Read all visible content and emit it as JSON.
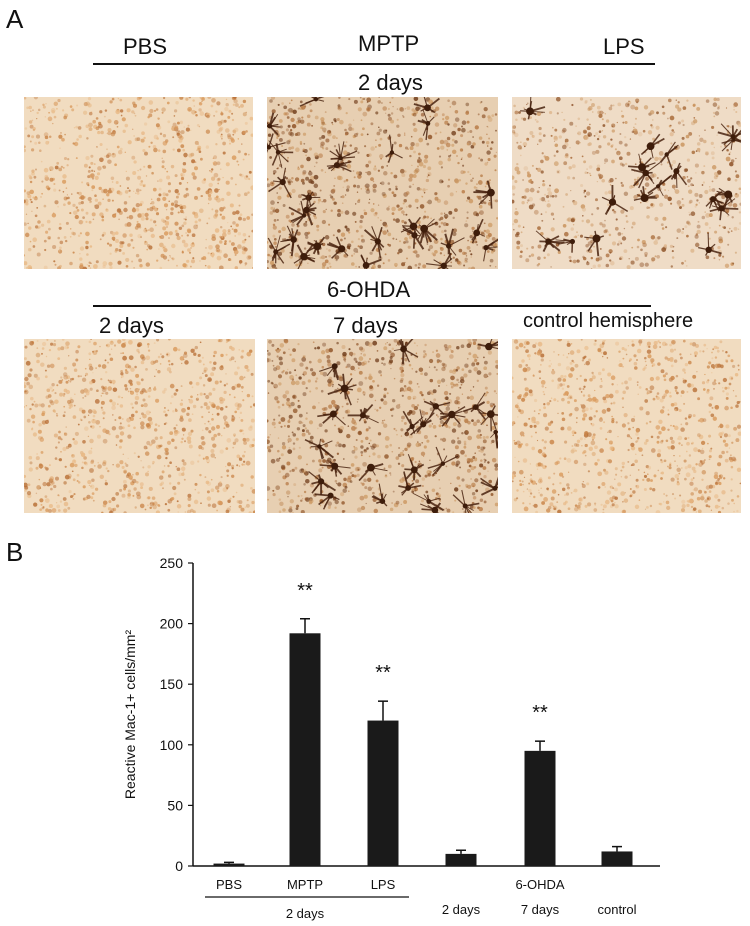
{
  "panel_a": {
    "letter": "A",
    "row1": {
      "headers": [
        "PBS",
        "MPTP",
        "LPS"
      ],
      "time": "2 days",
      "images": [
        {
          "name": "pbs-2days",
          "stain": "light",
          "cells": 0
        },
        {
          "name": "mptp-2days",
          "stain": "dark",
          "cells": 28
        },
        {
          "name": "lps-2days",
          "stain": "medium",
          "cells": 18
        }
      ]
    },
    "row2": {
      "group": "6-OHDA",
      "headers": [
        "2 days",
        "7 days",
        "control hemisphere"
      ],
      "images": [
        {
          "name": "ohda-2days",
          "stain": "light",
          "cells": 0
        },
        {
          "name": "ohda-7days",
          "stain": "dark",
          "cells": 26
        },
        {
          "name": "ohda-control",
          "stain": "light",
          "cells": 0
        }
      ]
    }
  },
  "panel_b": {
    "letter": "B",
    "significance_marker": "**"
  },
  "chart_data": {
    "type": "bar",
    "ylabel": "Reactive Mac-1+ cells/mm²",
    "ylim": [
      0,
      250
    ],
    "yticks": [
      0,
      50,
      100,
      150,
      200,
      250
    ],
    "categories": [
      "PBS",
      "MPTP",
      "LPS",
      "2 days",
      "7 days",
      "control"
    ],
    "values": [
      2,
      192,
      120,
      10,
      95,
      12
    ],
    "errors": [
      1,
      12,
      16,
      3,
      8,
      4
    ],
    "significant": [
      false,
      true,
      true,
      false,
      true,
      false
    ],
    "group_labels": [
      {
        "label": "2 days",
        "categories": [
          "PBS",
          "MPTP",
          "LPS"
        ]
      },
      {
        "label": "6-OHDA",
        "categories": [
          "2 days",
          "7 days"
        ]
      }
    ],
    "bar_color": "#1a1a1a"
  }
}
